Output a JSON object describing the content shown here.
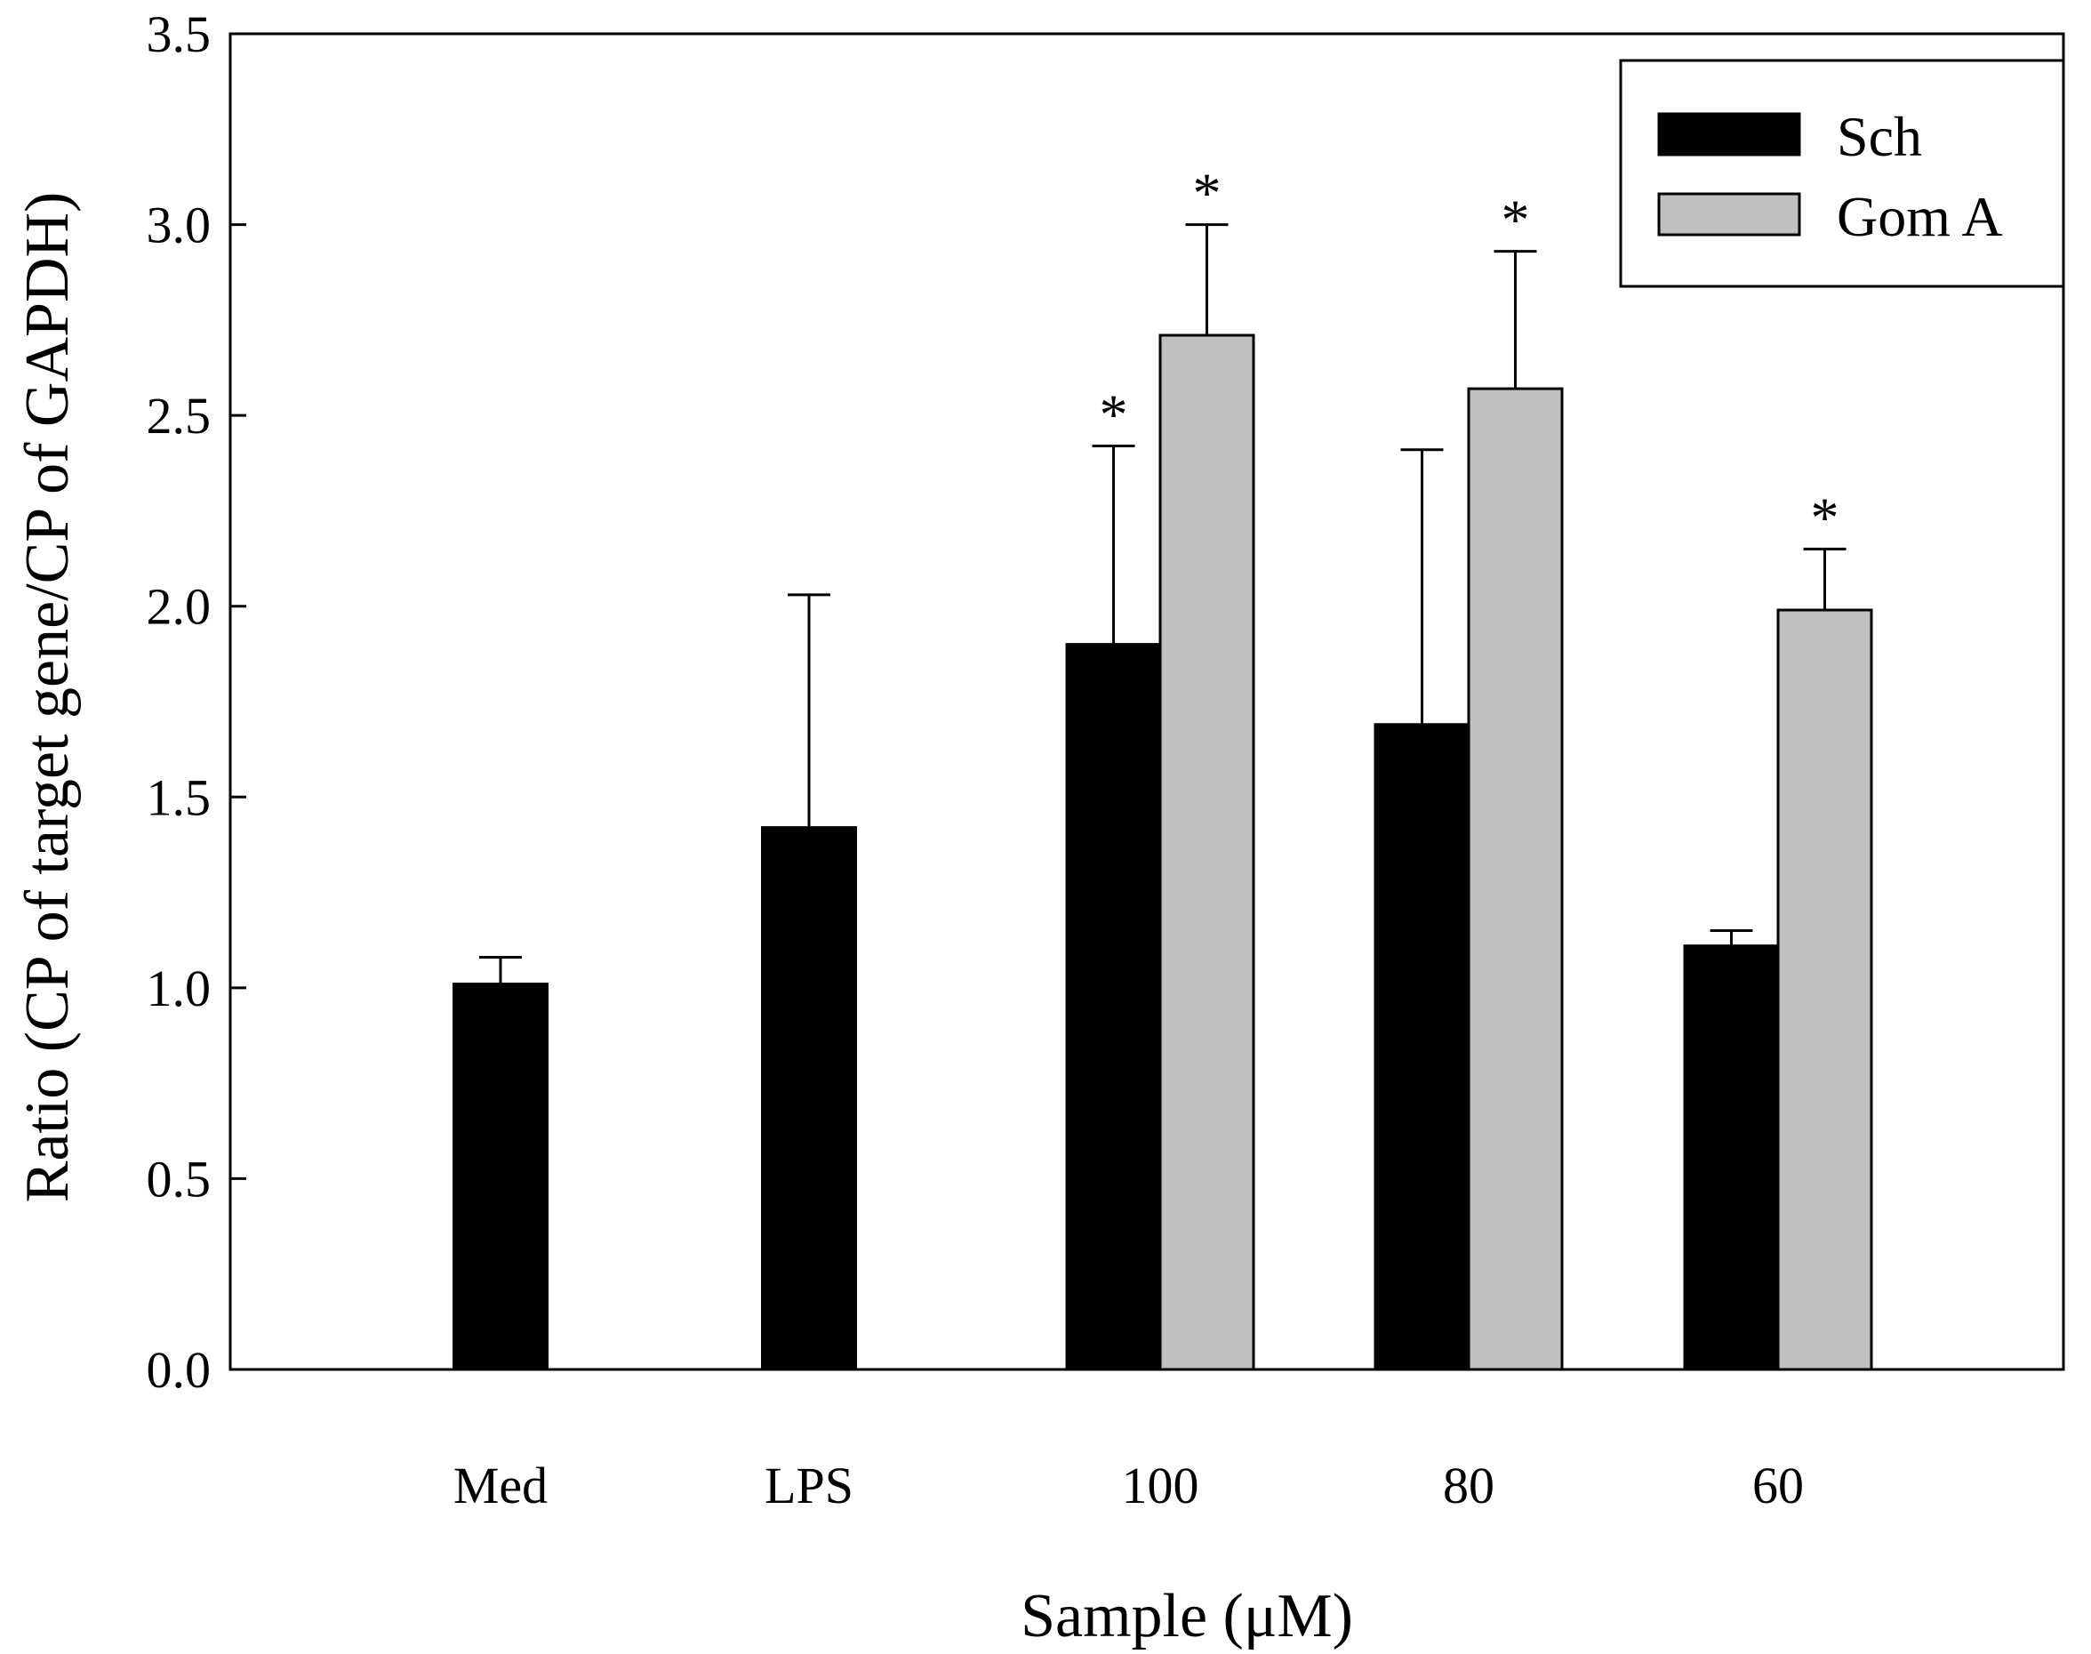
{
  "chart_data": {
    "type": "bar",
    "title": "",
    "xlabel": "Sample (μM)",
    "ylabel": "Ratio (CP of target gene/CP of GAPDH)",
    "ylim": [
      0,
      3.5
    ],
    "yticks": [
      "0.0",
      "0.5",
      "1.0",
      "1.5",
      "2.0",
      "2.5",
      "3.0",
      "3.5"
    ],
    "categories": [
      "Med",
      "LPS",
      "100",
      "80",
      "60"
    ],
    "legend_position": "top-right",
    "series": [
      {
        "name": "Sch",
        "color": "#000000",
        "values": [
          1.01,
          1.42,
          1.9,
          1.69,
          1.11
        ],
        "errors": [
          0.07,
          0.61,
          0.52,
          0.72,
          0.04
        ],
        "significant": [
          false,
          false,
          true,
          false,
          false
        ]
      },
      {
        "name": "Gom A",
        "color": "#c0c0c0",
        "values": [
          null,
          null,
          2.71,
          2.57,
          1.99
        ],
        "errors": [
          null,
          null,
          0.29,
          0.36,
          0.16
        ],
        "significant": [
          false,
          false,
          true,
          true,
          true
        ]
      }
    ],
    "significance_label": "*"
  }
}
